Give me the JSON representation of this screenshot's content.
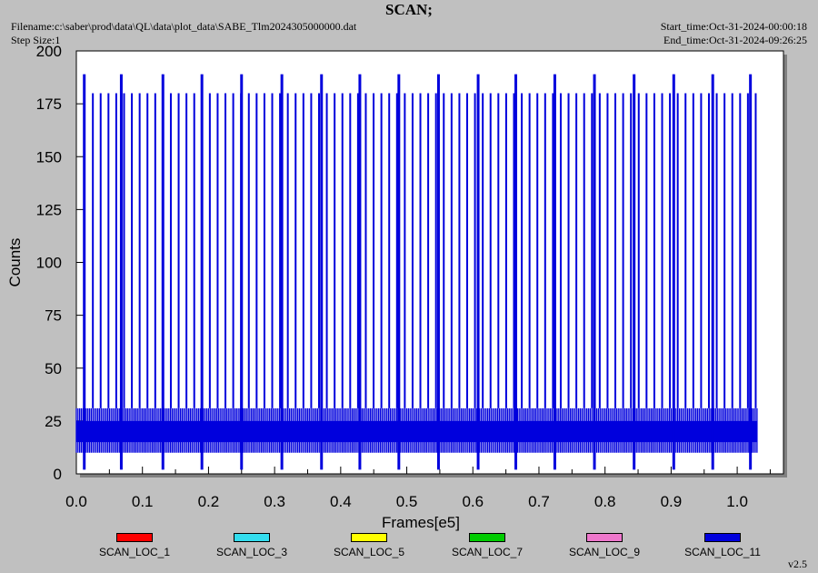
{
  "header": {
    "title": "SCAN;",
    "filename": "Filename:c:\\saber\\prod\\data\\QL\\data\\plot_data\\SABE_Tlm2024305000000.dat",
    "step_size": "Step Size:1",
    "start_time": "Start_time:Oct-31-2024-00:00:18",
    "end_time": "End_time:Oct-31-2024-09:26:25"
  },
  "version": "v2.5",
  "chart_data": {
    "type": "line",
    "title": "SCAN;",
    "xlabel": "Frames[e5]",
    "ylabel": "Counts",
    "xlim": [
      0,
      1.07
    ],
    "ylim": [
      0,
      200
    ],
    "xticks": [
      0.0,
      0.1,
      0.2,
      0.3,
      0.4,
      0.5,
      0.6,
      0.7,
      0.8,
      0.9,
      1.0
    ],
    "xtick_labels": [
      "0.0",
      "0.1",
      "0.2",
      "0.3",
      "0.4",
      "0.5",
      "0.6",
      "0.7",
      "0.8",
      "0.9",
      "1.0"
    ],
    "yticks": [
      0,
      25,
      50,
      75,
      100,
      125,
      150,
      175,
      200
    ],
    "ytick_labels": [
      "0",
      "25",
      "50",
      "75",
      "100",
      "125",
      "150",
      "175",
      "200"
    ],
    "x_range_data": [
      0.0,
      1.03
    ],
    "baseline_band": [
      10,
      31
    ],
    "spike_peak_x": [
      0.012,
      0.068,
      0.131,
      0.19,
      0.25,
      0.311,
      0.371,
      0.429,
      0.488,
      0.548,
      0.608,
      0.665,
      0.724,
      0.784,
      0.844,
      0.904,
      0.963,
      1.02
    ],
    "spike_peak_y": [
      189,
      189,
      189,
      189,
      189,
      189,
      189,
      189,
      189,
      189,
      189,
      189,
      189,
      189,
      189,
      189,
      189,
      189
    ],
    "regular_spike_y": 180,
    "series": [
      {
        "name": "SCAN_LOC_1",
        "color": "#ff0000"
      },
      {
        "name": "SCAN_LOC_3",
        "color": "#33ddee"
      },
      {
        "name": "SCAN_LOC_5",
        "color": "#ffff00"
      },
      {
        "name": "SCAN_LOC_7",
        "color": "#00cc00"
      },
      {
        "name": "SCAN_LOC_9",
        "color": "#ee77cc"
      },
      {
        "name": "SCAN_LOC_11",
        "color": "#0000dd"
      }
    ],
    "grid": false,
    "legend": "bottom"
  }
}
